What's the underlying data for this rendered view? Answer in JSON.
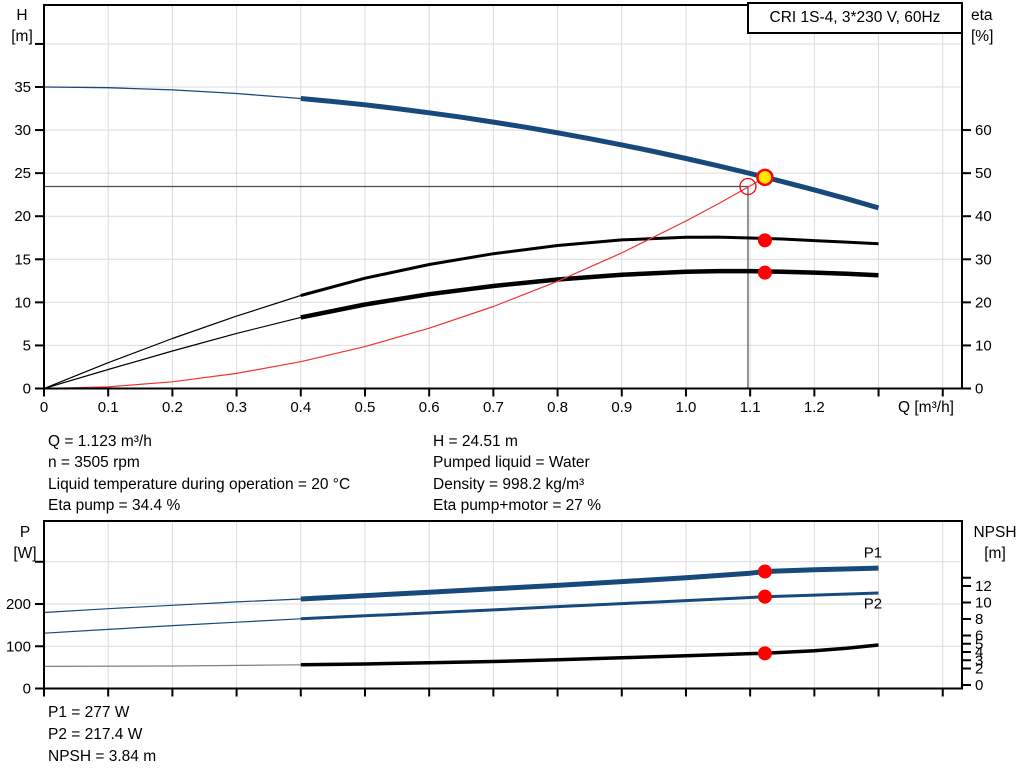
{
  "title_box": "CRI 1S-4, 3*230 V, 60Hz",
  "colors": {
    "curve_blue": "#17497D",
    "black": "#000000",
    "gray": "#808080",
    "red": "#EE3333",
    "dot_red": "#FF0000",
    "duty_yellow": "#FFE800",
    "grid": "#DBDBDB",
    "crosshair": "#4D4D4D",
    "frame": "#000000"
  },
  "info_mid_left": [
    "Q = 1.123 m³/h",
    "n = 3505 rpm",
    "Liquid temperature during operation = 20 °C",
    "Eta pump = 34.4 %"
  ],
  "info_mid_right": [
    "H = 24.51 m",
    "Pumped liquid = Water",
    "Density = 998.2 kg/m³",
    "Eta pump+motor = 27 %"
  ],
  "info_bottom": [
    "P1 = 277 W",
    "P2 = 217.4 W",
    "NPSH = 3.84 m"
  ],
  "chart_data": [
    {
      "type": "line",
      "name": "head-eta-chart",
      "title": "CRI 1S-4, 3*230 V, 60Hz",
      "x_axis": {
        "label": "Q [m³/h]",
        "min": 0,
        "max": 1.43,
        "ticks": [
          {
            "v": 0,
            "l": "0"
          },
          {
            "v": 0.1,
            "l": "0.1"
          },
          {
            "v": 0.2,
            "l": "0.2"
          },
          {
            "v": 0.3,
            "l": "0.3"
          },
          {
            "v": 0.4,
            "l": "0.4"
          },
          {
            "v": 0.5,
            "l": "0.5"
          },
          {
            "v": 0.6,
            "l": "0.6"
          },
          {
            "v": 0.7,
            "l": "0.7"
          },
          {
            "v": 0.8,
            "l": "0.8"
          },
          {
            "v": 0.9,
            "l": "0.9"
          },
          {
            "v": 1.0,
            "l": "1.0"
          },
          {
            "v": 1.1,
            "l": "1.1"
          },
          {
            "v": 1.2,
            "l": "1.2"
          },
          {
            "v": 1.3,
            "l": ""
          },
          {
            "v": 1.4,
            "l": ""
          }
        ]
      },
      "y_left": {
        "label": "H",
        "unit": "[m]",
        "min": 0,
        "max": 44.5,
        "ticks": [
          {
            "v": 0,
            "l": "0"
          },
          {
            "v": 5,
            "l": "5"
          },
          {
            "v": 10,
            "l": "10"
          },
          {
            "v": 15,
            "l": "15"
          },
          {
            "v": 20,
            "l": "20"
          },
          {
            "v": 25,
            "l": "25"
          },
          {
            "v": 30,
            "l": "30"
          },
          {
            "v": 35,
            "l": "35"
          },
          {
            "v": 40,
            "l": ""
          }
        ]
      },
      "y_right": {
        "label": "eta",
        "unit": "[%]",
        "min": 0,
        "max": 89,
        "ticks": [
          {
            "v": 0,
            "l": "0"
          },
          {
            "v": 10,
            "l": "10"
          },
          {
            "v": 20,
            "l": "20"
          },
          {
            "v": 30,
            "l": "30"
          },
          {
            "v": 40,
            "l": "40"
          },
          {
            "v": 50,
            "l": "50"
          },
          {
            "v": 60,
            "l": "60"
          }
        ]
      },
      "crosshair": {
        "h_value": 23.45,
        "v_q": 1.0966
      },
      "series": [
        {
          "name": "head-curve-thin",
          "axis": "left",
          "color": "curve_blue",
          "width": 1.3,
          "points": [
            [
              0,
              35
            ],
            [
              0.1,
              34.92
            ],
            [
              0.2,
              34.67
            ],
            [
              0.3,
              34.25
            ],
            [
              0.4,
              33.67
            ]
          ]
        },
        {
          "name": "head-curve",
          "axis": "left",
          "color": "curve_blue",
          "width": 5,
          "points": [
            [
              0.4,
              33.67
            ],
            [
              0.45,
              33.32
            ],
            [
              0.5,
              32.93
            ],
            [
              0.55,
              32.49
            ],
            [
              0.6,
              32.01
            ],
            [
              0.65,
              31.49
            ],
            [
              0.7,
              30.93
            ],
            [
              0.75,
              30.33
            ],
            [
              0.8,
              29.69
            ],
            [
              0.85,
              29.0
            ],
            [
              0.9,
              28.28
            ],
            [
              0.95,
              27.51
            ],
            [
              1.0,
              26.7
            ],
            [
              1.05,
              25.85
            ],
            [
              1.1,
              24.96
            ],
            [
              1.15,
              24.02
            ],
            [
              1.2,
              23.05
            ],
            [
              1.25,
              22.03
            ],
            [
              1.3,
              20.97
            ]
          ]
        },
        {
          "name": "eta-pump-thin",
          "axis": "right",
          "color": "black",
          "width": 1.2,
          "points": [
            [
              0,
              0
            ],
            [
              0.1,
              6.0
            ],
            [
              0.2,
              11.6
            ],
            [
              0.3,
              16.8
            ],
            [
              0.4,
              21.6
            ]
          ]
        },
        {
          "name": "eta-pump",
          "axis": "right",
          "color": "black",
          "width": 3,
          "points": [
            [
              0.4,
              21.6
            ],
            [
              0.5,
              25.6
            ],
            [
              0.6,
              28.8
            ],
            [
              0.7,
              31.3
            ],
            [
              0.8,
              33.2
            ],
            [
              0.9,
              34.5
            ],
            [
              1.0,
              35.1
            ],
            [
              1.05,
              35.15
            ],
            [
              1.1,
              34.95
            ],
            [
              1.15,
              34.7
            ],
            [
              1.2,
              34.35
            ],
            [
              1.25,
              34.0
            ],
            [
              1.3,
              33.6
            ]
          ]
        },
        {
          "name": "eta-pump-motor-thin",
          "axis": "right",
          "color": "black",
          "width": 1.2,
          "points": [
            [
              0,
              0
            ],
            [
              0.1,
              4.4
            ],
            [
              0.2,
              8.7
            ],
            [
              0.3,
              12.8
            ],
            [
              0.4,
              16.5
            ]
          ]
        },
        {
          "name": "eta-pump-motor",
          "axis": "right",
          "color": "black",
          "width": 4.5,
          "points": [
            [
              0.4,
              16.5
            ],
            [
              0.5,
              19.5
            ],
            [
              0.6,
              21.9
            ],
            [
              0.7,
              23.8
            ],
            [
              0.8,
              25.3
            ],
            [
              0.9,
              26.4
            ],
            [
              1.0,
              27.1
            ],
            [
              1.05,
              27.25
            ],
            [
              1.1,
              27.25
            ],
            [
              1.15,
              27.1
            ],
            [
              1.2,
              26.9
            ],
            [
              1.25,
              26.65
            ],
            [
              1.3,
              26.3
            ]
          ]
        },
        {
          "name": "system-curve",
          "axis": "left",
          "color": "red",
          "width": 1.2,
          "points": [
            [
              0,
              0
            ],
            [
              0.1,
              0.19
            ],
            [
              0.2,
              0.78
            ],
            [
              0.3,
              1.75
            ],
            [
              0.4,
              3.11
            ],
            [
              0.5,
              4.86
            ],
            [
              0.6,
              7.0
            ],
            [
              0.7,
              9.52
            ],
            [
              0.8,
              12.44
            ],
            [
              0.9,
              15.74
            ],
            [
              1.0,
              19.44
            ],
            [
              1.05,
              21.43
            ],
            [
              1.1,
              23.52
            ],
            [
              1.123,
              24.51
            ]
          ]
        }
      ],
      "markers": [
        {
          "name": "requested-duty-point",
          "q": 1.0966,
          "v": 23.45,
          "axis": "left",
          "type": "open",
          "r": 8
        },
        {
          "name": "duty-point",
          "q": 1.123,
          "v": 24.51,
          "axis": "left",
          "type": "duty",
          "r": 7.5
        },
        {
          "name": "eta-pump-duty-dot",
          "q": 1.123,
          "v": 34.4,
          "axis": "right",
          "type": "dot",
          "r": 7
        },
        {
          "name": "eta-pump-motor-duty-dot",
          "q": 1.123,
          "v": 26.9,
          "axis": "right",
          "type": "dot",
          "r": 7
        }
      ],
      "series_labels": []
    },
    {
      "type": "line",
      "name": "power-npsh-chart",
      "x_axis": {
        "label": "",
        "min": 0,
        "max": 1.43,
        "ticks": [
          {
            "v": 0,
            "l": ""
          },
          {
            "v": 0.1,
            "l": ""
          },
          {
            "v": 0.2,
            "l": ""
          },
          {
            "v": 0.3,
            "l": ""
          },
          {
            "v": 0.4,
            "l": ""
          },
          {
            "v": 0.5,
            "l": ""
          },
          {
            "v": 0.6,
            "l": ""
          },
          {
            "v": 0.7,
            "l": ""
          },
          {
            "v": 0.8,
            "l": ""
          },
          {
            "v": 0.9,
            "l": ""
          },
          {
            "v": 1.0,
            "l": ""
          },
          {
            "v": 1.1,
            "l": ""
          },
          {
            "v": 1.2,
            "l": ""
          },
          {
            "v": 1.3,
            "l": ""
          },
          {
            "v": 1.4,
            "l": ""
          }
        ]
      },
      "y_left": {
        "label": "P",
        "unit": "[W]",
        "min": 0,
        "max": 396,
        "ticks": [
          {
            "v": 0,
            "l": "0"
          },
          {
            "v": 100,
            "l": "100"
          },
          {
            "v": 200,
            "l": "200"
          },
          {
            "v": 300,
            "l": ""
          }
        ]
      },
      "y_right": {
        "label": "NPSH",
        "unit": "[m]",
        "min": 0,
        "max": 19.9,
        "ticks": [
          {
            "v": 0,
            "l": "0"
          },
          {
            "v": 2,
            "l": "2"
          },
          {
            "v": 3,
            "l": "3"
          },
          {
            "v": 4,
            "l": "4"
          },
          {
            "v": 5,
            "l": "5"
          },
          {
            "v": 6,
            "l": "6"
          },
          {
            "v": 8,
            "l": "8"
          },
          {
            "v": 10,
            "l": "10"
          },
          {
            "v": 12,
            "l": "12"
          },
          {
            "v": 13,
            "l": ""
          }
        ]
      },
      "crosshair": null,
      "series": [
        {
          "name": "p1-thin",
          "axis": "left",
          "color": "curve_blue",
          "width": 1.2,
          "points": [
            [
              0,
              180
            ],
            [
              0.1,
              189
            ],
            [
              0.2,
              197
            ],
            [
              0.3,
              205
            ],
            [
              0.4,
              212
            ]
          ]
        },
        {
          "name": "p1",
          "axis": "left",
          "color": "curve_blue",
          "width": 5,
          "points": [
            [
              0.4,
              212
            ],
            [
              0.5,
              220
            ],
            [
              0.6,
              228
            ],
            [
              0.7,
              236
            ],
            [
              0.8,
              244
            ],
            [
              0.9,
              253
            ],
            [
              1.0,
              262
            ],
            [
              1.1,
              273
            ],
            [
              1.123,
              277
            ],
            [
              1.2,
              281
            ],
            [
              1.3,
              285
            ]
          ]
        },
        {
          "name": "p2-thin",
          "axis": "left",
          "color": "curve_blue",
          "width": 1.2,
          "points": [
            [
              0,
              131
            ],
            [
              0.1,
              140
            ],
            [
              0.2,
              149
            ],
            [
              0.3,
              157
            ],
            [
              0.4,
              165
            ]
          ]
        },
        {
          "name": "p2",
          "axis": "left",
          "color": "curve_blue",
          "width": 3,
          "points": [
            [
              0.4,
              165
            ],
            [
              0.5,
              172
            ],
            [
              0.6,
              179
            ],
            [
              0.7,
              186
            ],
            [
              0.8,
              194
            ],
            [
              0.9,
              201
            ],
            [
              1.0,
              208
            ],
            [
              1.1,
              215.5
            ],
            [
              1.123,
              217.4
            ],
            [
              1.2,
              221
            ],
            [
              1.3,
              226
            ]
          ]
        },
        {
          "name": "npsh-thin",
          "axis": "right",
          "color": "gray",
          "width": 1.2,
          "points": [
            [
              0,
              2.25
            ],
            [
              0.2,
              2.3
            ],
            [
              0.4,
              2.45
            ]
          ]
        },
        {
          "name": "npsh",
          "axis": "right",
          "color": "black",
          "width": 3.5,
          "points": [
            [
              0.4,
              2.45
            ],
            [
              0.5,
              2.55
            ],
            [
              0.6,
              2.7
            ],
            [
              0.7,
              2.85
            ],
            [
              0.8,
              3.05
            ],
            [
              0.9,
              3.3
            ],
            [
              1.0,
              3.55
            ],
            [
              1.1,
              3.8
            ],
            [
              1.123,
              3.84
            ],
            [
              1.2,
              4.15
            ],
            [
              1.25,
              4.45
            ],
            [
              1.3,
              4.85
            ]
          ]
        }
      ],
      "markers": [
        {
          "name": "p1-duty-dot",
          "q": 1.123,
          "v": 277,
          "axis": "left",
          "type": "dot",
          "r": 7
        },
        {
          "name": "p2-duty-dot",
          "q": 1.123,
          "v": 217.4,
          "axis": "left",
          "type": "dot",
          "r": 7
        },
        {
          "name": "npsh-duty-dot",
          "q": 1.123,
          "v": 3.84,
          "axis": "right",
          "type": "dot",
          "r": 7
        }
      ],
      "series_labels": [
        {
          "label": "P1",
          "q": 1.277,
          "v": 322,
          "axis": "left"
        },
        {
          "label": "P2",
          "q": 1.277,
          "v": 201,
          "axis": "left"
        }
      ]
    }
  ]
}
